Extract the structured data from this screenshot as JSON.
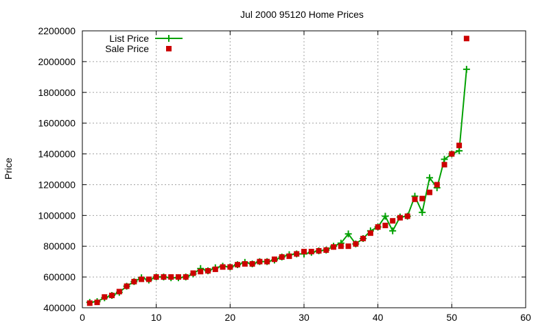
{
  "chart_data": {
    "type": "line",
    "title": "Jul 2000 95120 Home Prices",
    "xlabel": "",
    "ylabel": "Price",
    "xlim": [
      0,
      60
    ],
    "ylim": [
      400000,
      2200000
    ],
    "xticks": [
      0,
      10,
      20,
      30,
      40,
      50,
      60
    ],
    "yticks": [
      400000,
      600000,
      800000,
      1000000,
      1200000,
      1400000,
      1600000,
      1800000,
      2000000,
      2200000
    ],
    "grid": true,
    "legend_position": "top-left",
    "series": [
      {
        "name": "List Price",
        "style": "lines+crosses",
        "color": "#00a000",
        "x": [
          1,
          2,
          3,
          4,
          5,
          6,
          7,
          8,
          9,
          10,
          11,
          12,
          13,
          14,
          15,
          16,
          17,
          18,
          19,
          20,
          21,
          22,
          23,
          24,
          25,
          26,
          27,
          28,
          29,
          30,
          31,
          32,
          33,
          34,
          35,
          36,
          37,
          38,
          39,
          40,
          41,
          42,
          43,
          44,
          45,
          46,
          47,
          48,
          49,
          50,
          51,
          52
        ],
        "y": [
          435000,
          440000,
          465000,
          480000,
          500000,
          540000,
          570000,
          595000,
          580000,
          600000,
          600000,
          595000,
          595000,
          600000,
          620000,
          655000,
          640000,
          660000,
          670000,
          665000,
          680000,
          695000,
          685000,
          700000,
          700000,
          710000,
          730000,
          745000,
          750000,
          750000,
          760000,
          770000,
          775000,
          800000,
          820000,
          880000,
          815000,
          850000,
          900000,
          925000,
          995000,
          900000,
          990000,
          995000,
          1125000,
          1020000,
          1245000,
          1180000,
          1365000,
          1400000,
          1420000,
          1950000
        ]
      },
      {
        "name": "Sale Price",
        "style": "points",
        "color": "#cc0000",
        "x": [
          1,
          2,
          3,
          4,
          5,
          6,
          7,
          8,
          9,
          10,
          11,
          12,
          13,
          14,
          15,
          16,
          17,
          18,
          19,
          20,
          21,
          22,
          23,
          24,
          25,
          26,
          27,
          28,
          29,
          30,
          31,
          32,
          33,
          34,
          35,
          36,
          37,
          38,
          39,
          40,
          41,
          42,
          43,
          44,
          45,
          46,
          47,
          48,
          49,
          50,
          51,
          52
        ],
        "y": [
          430000,
          435000,
          470000,
          480000,
          505000,
          540000,
          570000,
          585000,
          585000,
          600000,
          600000,
          600000,
          600000,
          600000,
          625000,
          635000,
          640000,
          650000,
          665000,
          665000,
          680000,
          685000,
          685000,
          700000,
          700000,
          715000,
          730000,
          735000,
          750000,
          765000,
          765000,
          770000,
          775000,
          795000,
          800000,
          800000,
          815000,
          850000,
          885000,
          925000,
          935000,
          965000,
          985000,
          995000,
          1105000,
          1110000,
          1150000,
          1200000,
          1330000,
          1400000,
          1455000,
          2150000
        ]
      }
    ]
  }
}
